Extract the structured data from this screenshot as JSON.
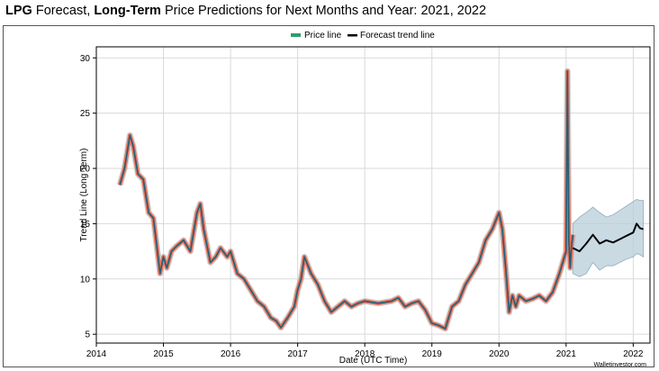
{
  "title": {
    "part1_bold": "LPG",
    "part2": " Forecast, ",
    "part3_bold": "Long-Term",
    "part4": " Price Predictions for Next Months and Year: 2021, 2022"
  },
  "credit": "Walletinvestor.com",
  "colors": {
    "price_line": "#1f5f7a",
    "price_highlight": "#e8735a",
    "forecast_line": "#000000",
    "forecast_band": "#b8cdd9",
    "legend_price": "#2e9e6e"
  },
  "chart_data": {
    "type": "line",
    "xlabel": "Date (UTC Time)",
    "ylabel": "Trend Line (Long Term)",
    "xlim": [
      2014.0,
      2022.25
    ],
    "ylim": [
      4.2,
      31.0
    ],
    "x_ticks": [
      2014,
      2015,
      2016,
      2017,
      2018,
      2019,
      2020,
      2021,
      2022
    ],
    "x_tick_labels": [
      "2014",
      "2015",
      "2016",
      "2017",
      "2018",
      "2019",
      "2020",
      "2021",
      "2022"
    ],
    "y_ticks": [
      5,
      10,
      15,
      20,
      25,
      30
    ],
    "y_tick_labels": [
      "5",
      "10",
      "15",
      "20",
      "25",
      "30"
    ],
    "grid": true,
    "legend_position": "top-center",
    "series": [
      {
        "name": "Price line",
        "x": [
          2014.35,
          2014.42,
          2014.5,
          2014.55,
          2014.62,
          2014.7,
          2014.78,
          2014.85,
          2014.9,
          2014.95,
          2015.0,
          2015.05,
          2015.12,
          2015.2,
          2015.3,
          2015.4,
          2015.5,
          2015.55,
          2015.6,
          2015.7,
          2015.78,
          2015.85,
          2015.95,
          2016.0,
          2016.1,
          2016.2,
          2016.3,
          2016.4,
          2016.5,
          2016.6,
          2016.68,
          2016.75,
          2016.85,
          2016.95,
          2017.0,
          2017.05,
          2017.1,
          2017.2,
          2017.3,
          2017.4,
          2017.5,
          2017.6,
          2017.7,
          2017.8,
          2017.9,
          2018.0,
          2018.2,
          2018.4,
          2018.5,
          2018.6,
          2018.7,
          2018.8,
          2018.9,
          2019.0,
          2019.1,
          2019.2,
          2019.3,
          2019.4,
          2019.5,
          2019.6,
          2019.7,
          2019.8,
          2019.9,
          2020.0,
          2020.05,
          2020.1,
          2020.15,
          2020.2,
          2020.25,
          2020.3,
          2020.4,
          2020.5,
          2020.6,
          2020.7,
          2020.8,
          2020.9,
          2020.95,
          2021.0,
          2021.02,
          2021.04,
          2021.06,
          2021.08,
          2021.1
        ],
        "values": [
          18.5,
          20.0,
          23.0,
          22.0,
          19.5,
          19.0,
          16.0,
          15.5,
          13.0,
          10.5,
          12.0,
          11.0,
          12.5,
          13.0,
          13.5,
          12.5,
          16.0,
          16.8,
          14.5,
          11.5,
          12.0,
          12.8,
          12.0,
          12.5,
          10.5,
          10.0,
          9.0,
          8.0,
          7.5,
          6.5,
          6.2,
          5.6,
          6.5,
          7.5,
          9.0,
          10.0,
          12.0,
          10.5,
          9.5,
          8.0,
          7.0,
          7.5,
          8.0,
          7.5,
          7.8,
          8.0,
          7.8,
          8.0,
          8.3,
          7.5,
          7.8,
          8.0,
          7.2,
          6.0,
          5.8,
          5.5,
          7.5,
          8.0,
          9.5,
          10.5,
          11.5,
          13.5,
          14.5,
          16.0,
          14.5,
          11.0,
          7.0,
          8.5,
          7.5,
          8.5,
          8.0,
          8.2,
          8.5,
          8.0,
          8.8,
          10.5,
          11.5,
          12.5,
          28.8,
          13.5,
          11.0,
          13.0,
          14.0
        ]
      },
      {
        "name": "Forecast trend line",
        "x": [
          2021.1,
          2021.2,
          2021.3,
          2021.4,
          2021.5,
          2021.6,
          2021.7,
          2021.8,
          2021.9,
          2022.0,
          2022.05,
          2022.1,
          2022.15
        ],
        "values": [
          12.8,
          12.5,
          13.2,
          14.0,
          13.2,
          13.5,
          13.3,
          13.6,
          13.9,
          14.2,
          15.0,
          14.6,
          14.5
        ],
        "band_upper": [
          15.0,
          15.6,
          16.0,
          16.5,
          16.0,
          15.6,
          15.8,
          16.2,
          16.6,
          17.0,
          17.2,
          17.1,
          17.1
        ],
        "band_lower": [
          10.5,
          10.2,
          10.5,
          11.5,
          10.8,
          11.2,
          11.2,
          11.5,
          11.8,
          12.0,
          12.3,
          12.2,
          12.0
        ]
      }
    ]
  }
}
